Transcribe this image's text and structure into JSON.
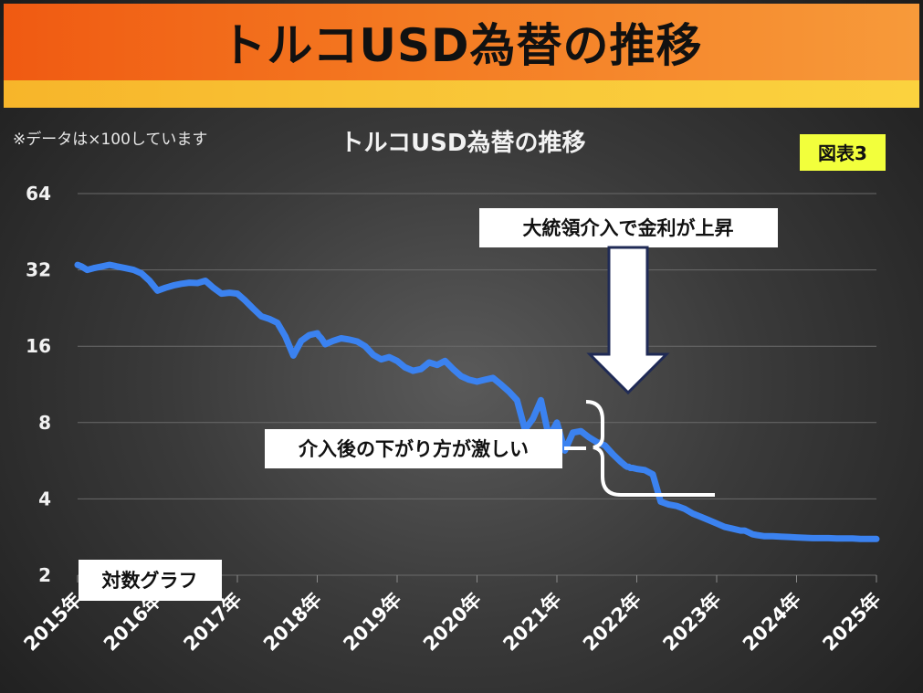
{
  "banner": {
    "title": "トルコUSD為替の推移"
  },
  "chart_data": {
    "type": "line",
    "title": "トルコUSD為替の推移",
    "note": "※データは×100しています",
    "figure_label": "図表3",
    "scale_label": "対数グラフ",
    "y_scale": "log2",
    "ylim": [
      2,
      64
    ],
    "yticks": [
      "2",
      "4",
      "8",
      "16",
      "32",
      "64"
    ],
    "xticks": [
      "2015年",
      "2016年",
      "2017年",
      "2018年",
      "2019年",
      "2020年",
      "2021年",
      "2022年",
      "2023年",
      "2024年",
      "2025年"
    ],
    "xlim": [
      2015,
      2025
    ],
    "grid": true,
    "line_color": "#3b82f0",
    "series": [
      {
        "x": [
          2015.0,
          2015.05,
          2015.12,
          2015.2,
          2015.3,
          2015.4,
          2015.5,
          2015.6,
          2015.7,
          2015.8,
          2015.9,
          2016.0,
          2016.1,
          2016.2,
          2016.3,
          2016.4,
          2016.5,
          2016.6,
          2016.7,
          2016.8,
          2016.9,
          2017.0,
          2017.1,
          2017.2,
          2017.3,
          2017.4,
          2017.5,
          2017.6,
          2017.7,
          2017.8,
          2017.9,
          2018.0,
          2018.02,
          2018.05,
          2018.1,
          2018.2,
          2018.3,
          2018.4,
          2018.5,
          2018.6,
          2018.7,
          2018.8,
          2018.9,
          2019.0,
          2019.1,
          2019.2,
          2019.3,
          2019.4,
          2019.5,
          2019.6,
          2019.7,
          2019.8,
          2019.9,
          2020.0,
          2020.1,
          2020.2,
          2020.3,
          2020.4,
          2020.5,
          2020.6,
          2020.7,
          2020.8,
          2020.9,
          2021.0,
          2021.1,
          2021.2,
          2021.3,
          2021.4,
          2021.5,
          2021.6,
          2021.7,
          2021.75,
          2021.8,
          2021.83,
          2021.86,
          2021.88,
          2021.9,
          2021.92,
          2021.95,
          2022.0,
          2022.1,
          2022.2,
          2022.3,
          2022.4,
          2022.5,
          2022.6,
          2022.7,
          2022.8,
          2022.9,
          2023.0,
          2023.1,
          2023.2,
          2023.3,
          2023.35,
          2023.4,
          2023.45,
          2023.5,
          2023.6,
          2023.7,
          2023.8,
          2023.9,
          2024.0,
          2024.1,
          2024.2,
          2024.3,
          2024.4,
          2024.5,
          2024.6,
          2024.7,
          2024.8,
          2024.9,
          2025.0
        ],
        "y": [
          33.5,
          33.0,
          32.0,
          32.5,
          33.0,
          33.5,
          33.0,
          32.5,
          32.0,
          31.0,
          29.0,
          26.5,
          27.2,
          27.8,
          28.2,
          28.5,
          28.4,
          29.0,
          27.2,
          25.8,
          26.0,
          25.8,
          24.2,
          22.5,
          21.0,
          20.5,
          19.8,
          17.5,
          14.7,
          16.8,
          17.7,
          18.0,
          17.6,
          17.2,
          16.3,
          16.8,
          17.2,
          17.0,
          16.7,
          16.0,
          14.8,
          14.2,
          14.5,
          14.0,
          13.2,
          12.8,
          13.0,
          13.8,
          13.5,
          14.0,
          13.0,
          12.2,
          11.8,
          11.6,
          11.8,
          12.0,
          11.3,
          10.6,
          9.8,
          7.5,
          8.3,
          9.8,
          7.0,
          8.0,
          6.2,
          7.3,
          7.4,
          7.0,
          6.7,
          6.5,
          6.0,
          5.8,
          5.6,
          5.5,
          5.4,
          5.35,
          5.35,
          5.3,
          5.3,
          5.25,
          5.2,
          5.0,
          3.9,
          3.8,
          3.75,
          3.65,
          3.5,
          3.4,
          3.3,
          3.2,
          3.1,
          3.05,
          3.0,
          3.0,
          2.95,
          2.9,
          2.88,
          2.85,
          2.85,
          2.84,
          2.83,
          2.82,
          2.81,
          2.8,
          2.8,
          2.8,
          2.79,
          2.79,
          2.79,
          2.78,
          2.78,
          2.78
        ]
      }
    ],
    "annotations": {
      "intervention": "大統領介入で金利が上昇",
      "after": "介入後の下がり方が激しい"
    }
  }
}
